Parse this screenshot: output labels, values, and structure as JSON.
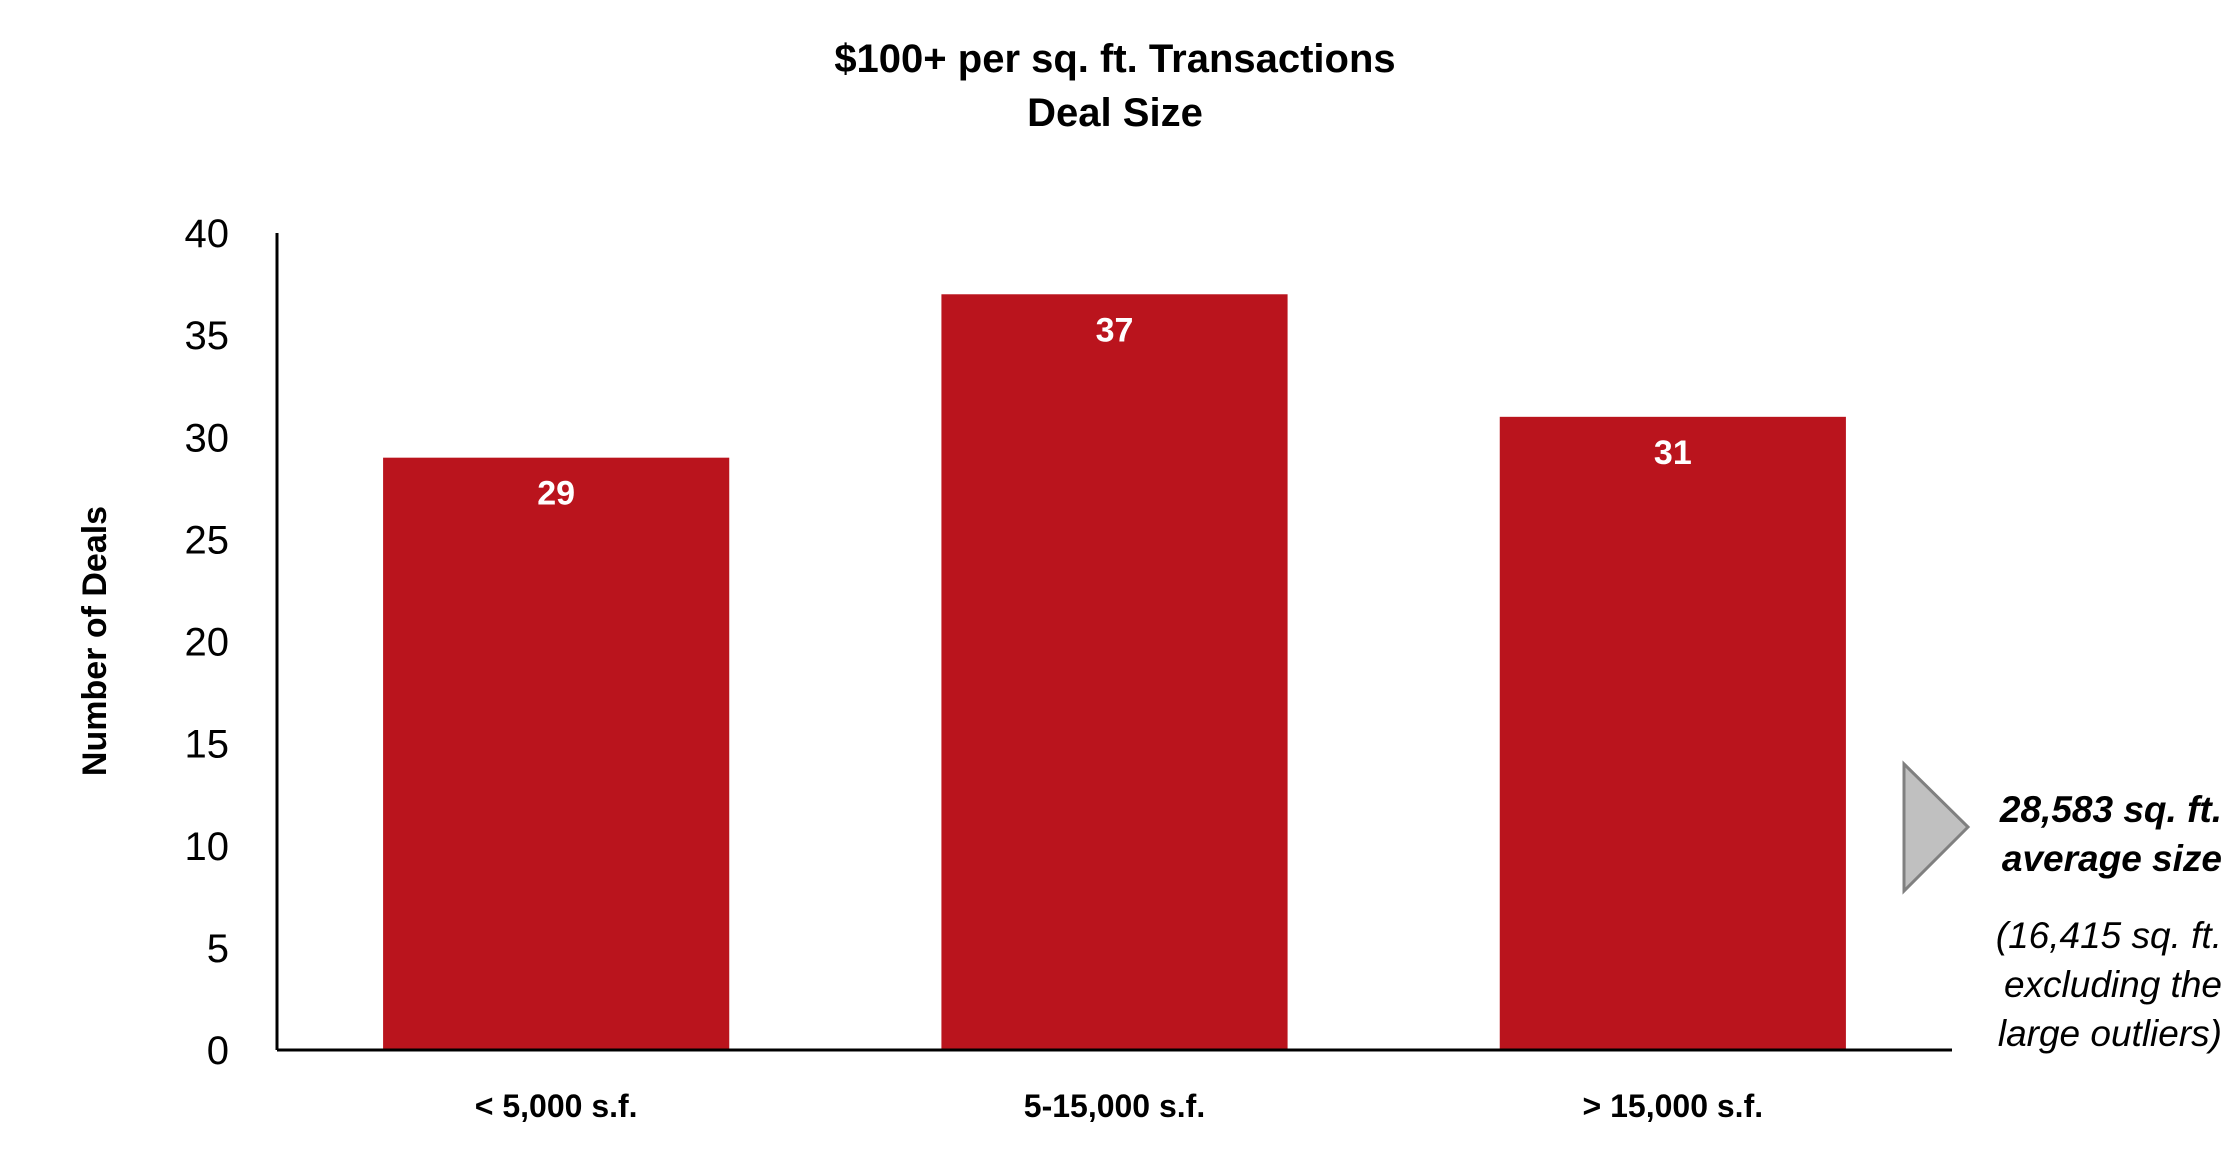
{
  "chart_data": {
    "type": "bar",
    "title": "$100+ per sq. ft. Transactions",
    "subtitle": "Deal Size",
    "xlabel": "",
    "ylabel": "Number of Deals",
    "categories": [
      "< 5,000 s.f.",
      "5-15,000 s.f.",
      "> 15,000 s.f."
    ],
    "values": [
      29,
      37,
      31
    ],
    "ylim": [
      0,
      40
    ],
    "yticks": [
      0,
      5,
      10,
      15,
      20,
      25,
      30,
      35,
      40
    ],
    "data_labels": [
      "29",
      "37",
      "31"
    ],
    "grid": false,
    "legend": "none",
    "bar_color": "#BA141D",
    "data_label_color": "#FFFFFF"
  },
  "callout": {
    "icon": "triangle-pointer-icon",
    "icon_fill": "#C0C0C0",
    "icon_stroke": "#808080",
    "main_lines": [
      "28,583 sq. ft.",
      "average size"
    ],
    "sub_lines": [
      "(16,415 sq. ft.",
      "excluding the",
      "large outliers)"
    ]
  }
}
